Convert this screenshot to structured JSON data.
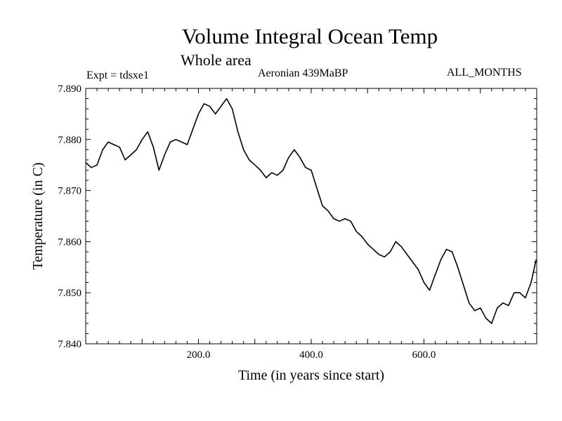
{
  "chart_data": {
    "type": "line",
    "title": "Volume Integral Ocean Temp",
    "subtitle": "Whole area",
    "annotations": {
      "experiment": "Expt = tdsxe1",
      "period": "Aeronian 439MaBP",
      "months": "ALL_MONTHS"
    },
    "xlabel": "Time (in years since start)",
    "ylabel": "Temperature (in C)",
    "xlim": [
      0,
      800
    ],
    "ylim": [
      7.84,
      7.89
    ],
    "xticks": [
      200,
      400,
      600
    ],
    "xtick_labels": [
      "200.0",
      "400.0",
      "600.0"
    ],
    "yticks": [
      7.84,
      7.85,
      7.86,
      7.87,
      7.88,
      7.89
    ],
    "ytick_labels": [
      "7.840",
      "7.850",
      "7.860",
      "7.870",
      "7.880",
      "7.890"
    ],
    "grid": false,
    "series": [
      {
        "name": "Volume Integral Ocean Temp",
        "color": "#000000",
        "x": [
          0,
          10,
          20,
          30,
          40,
          50,
          60,
          70,
          80,
          90,
          100,
          110,
          120,
          130,
          140,
          150,
          160,
          170,
          180,
          190,
          200,
          210,
          220,
          230,
          240,
          250,
          260,
          270,
          280,
          290,
          300,
          310,
          320,
          330,
          340,
          350,
          360,
          370,
          380,
          390,
          400,
          410,
          420,
          430,
          440,
          450,
          460,
          470,
          480,
          490,
          500,
          510,
          520,
          530,
          540,
          550,
          560,
          570,
          580,
          590,
          600,
          610,
          620,
          630,
          640,
          650,
          660,
          670,
          680,
          690,
          700,
          710,
          720,
          730,
          740,
          750,
          760,
          770,
          780,
          790,
          799
        ],
        "values": [
          7.8755,
          7.8745,
          7.875,
          7.878,
          7.8795,
          7.879,
          7.8785,
          7.876,
          7.877,
          7.878,
          7.88,
          7.8815,
          7.8785,
          7.874,
          7.877,
          7.8795,
          7.88,
          7.8795,
          7.879,
          7.882,
          7.885,
          7.887,
          7.8865,
          7.885,
          7.8865,
          7.888,
          7.886,
          7.8815,
          7.878,
          7.876,
          7.875,
          7.874,
          7.8725,
          7.8735,
          7.873,
          7.874,
          7.8765,
          7.878,
          7.8765,
          7.8745,
          7.874,
          7.8705,
          7.867,
          7.866,
          7.8645,
          7.864,
          7.8645,
          7.864,
          7.862,
          7.861,
          7.8595,
          7.8585,
          7.8575,
          7.857,
          7.858,
          7.86,
          7.859,
          7.8575,
          7.856,
          7.8545,
          7.852,
          7.8505,
          7.8535,
          7.8565,
          7.8585,
          7.858,
          7.855,
          7.8515,
          7.848,
          7.8465,
          7.847,
          7.845,
          7.844,
          7.847,
          7.848,
          7.8475,
          7.85,
          7.85,
          7.849,
          7.852,
          7.8565
        ]
      }
    ]
  }
}
